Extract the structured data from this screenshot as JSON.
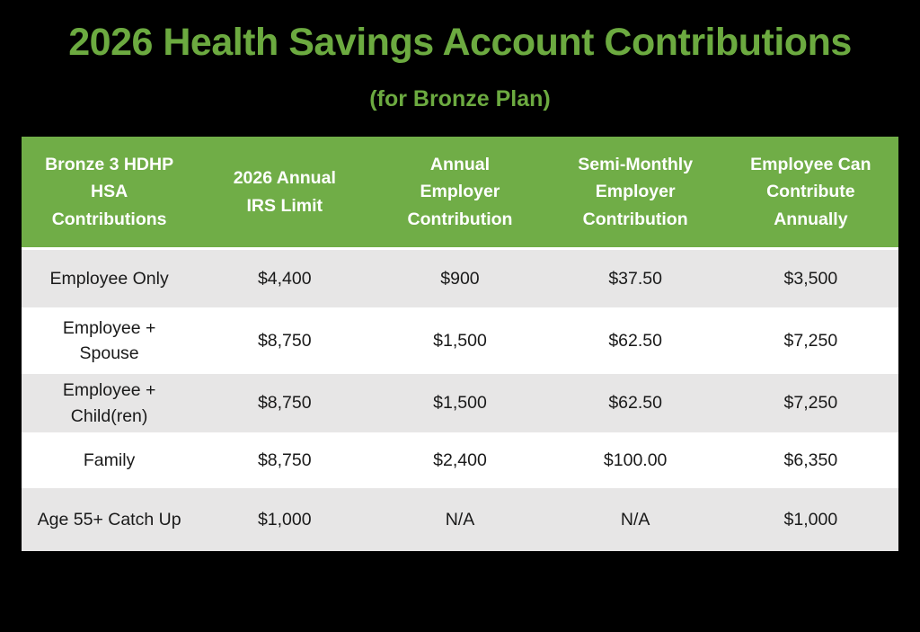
{
  "title": "2026 Health Savings Account Contributions",
  "subtitle": "(for Bronze Plan)",
  "colors": {
    "background": "#000000",
    "title_green": "#6CAA40",
    "header_green": "#70AD47",
    "header_text": "#FFFFFF",
    "row_alt_gray": "#E7E6E6",
    "row_white": "#FFFFFF",
    "body_text": "#1A1A1A"
  },
  "table": {
    "headers": [
      "Bronze 3 HDHP\nHSA\nContributions",
      "2026 Annual\nIRS Limit",
      "Annual\nEmployer\nContribution",
      "Semi-Monthly\nEmployer\nContribution",
      "Employee Can\nContribute\nAnnually"
    ],
    "rows": [
      {
        "cells": [
          "Employee Only",
          "$4,400",
          "$900",
          "$37.50",
          "$3,500"
        ]
      },
      {
        "cells": [
          "Employee +\nSpouse",
          "$8,750",
          "$1,500",
          "$62.50",
          "$7,250"
        ]
      },
      {
        "cells": [
          "Employee +\nChild(ren)",
          "$8,750",
          "$1,500",
          "$62.50",
          "$7,250"
        ]
      },
      {
        "cells": [
          "Family",
          "$8,750",
          "$2,400",
          "$100.00",
          "$6,350"
        ]
      },
      {
        "cells": [
          "Age 55+ Catch Up",
          "$1,000",
          "N/A",
          "N/A",
          "$1,000"
        ]
      }
    ]
  }
}
